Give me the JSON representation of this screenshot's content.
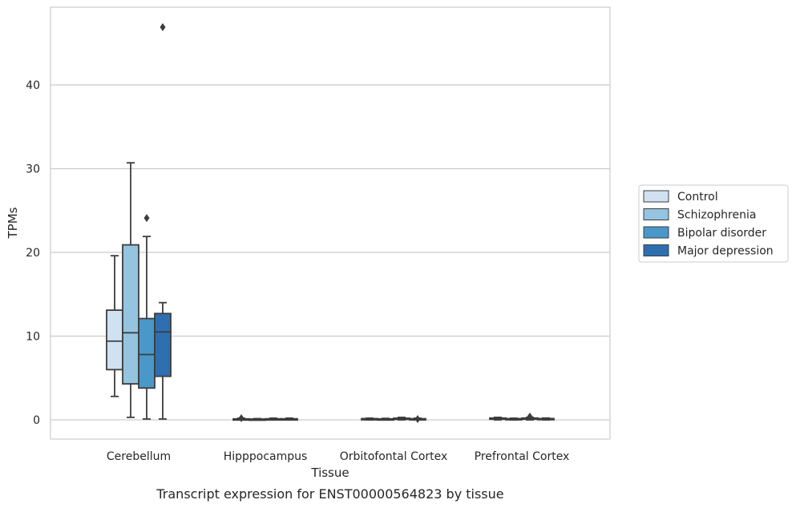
{
  "chart_data": {
    "type": "box",
    "title": "Transcript expression for ENST00000564823 by tissue",
    "xlabel": "Tissue",
    "ylabel": "TPMs",
    "ylim": [
      -2.3,
      49
    ],
    "yticks": [
      0,
      10,
      20,
      30,
      40
    ],
    "grid": "horizontal",
    "legend_position": "right",
    "categories": [
      "Cerebellum",
      "Hipppocampus",
      "Orbitofontal Cortex",
      "Prefrontal Cortex"
    ],
    "series": [
      {
        "name": "Control",
        "color": "#d0e1f2",
        "boxes": [
          {
            "whislo": 2.8,
            "q1": 6.0,
            "med": 9.4,
            "q3": 13.1,
            "whishi": 19.6,
            "fliers": []
          },
          {
            "whislo": 0.0,
            "q1": 0.03,
            "med": 0.07,
            "q3": 0.12,
            "whishi": 0.2,
            "fliers": [
              0.2
            ]
          },
          {
            "whislo": 0.0,
            "q1": 0.05,
            "med": 0.1,
            "q3": 0.15,
            "whishi": 0.2,
            "fliers": []
          },
          {
            "whislo": 0.0,
            "q1": 0.1,
            "med": 0.15,
            "q3": 0.22,
            "whishi": 0.3,
            "fliers": []
          }
        ]
      },
      {
        "name": "Schizophrenia",
        "color": "#94c4df",
        "boxes": [
          {
            "whislo": 0.3,
            "q1": 4.3,
            "med": 10.4,
            "q3": 20.9,
            "whishi": 30.7,
            "fliers": []
          },
          {
            "whislo": 0.0,
            "q1": 0.03,
            "med": 0.06,
            "q3": 0.1,
            "whishi": 0.15,
            "fliers": []
          },
          {
            "whislo": 0.0,
            "q1": 0.04,
            "med": 0.08,
            "q3": 0.12,
            "whishi": 0.18,
            "fliers": []
          },
          {
            "whislo": 0.0,
            "q1": 0.06,
            "med": 0.1,
            "q3": 0.15,
            "whishi": 0.2,
            "fliers": []
          }
        ]
      },
      {
        "name": "Bipolar disorder",
        "color": "#4a98c9",
        "boxes": [
          {
            "whislo": 0.1,
            "q1": 3.8,
            "med": 7.8,
            "q3": 12.1,
            "whishi": 21.9,
            "fliers": [
              24.1
            ]
          },
          {
            "whislo": 0.0,
            "q1": 0.04,
            "med": 0.08,
            "q3": 0.13,
            "whishi": 0.2,
            "fliers": []
          },
          {
            "whislo": 0.0,
            "q1": 0.06,
            "med": 0.12,
            "q3": 0.2,
            "whishi": 0.3,
            "fliers": []
          },
          {
            "whislo": 0.0,
            "q1": 0.08,
            "med": 0.14,
            "q3": 0.22,
            "whishi": 0.3,
            "fliers": [
              0.4
            ]
          }
        ]
      },
      {
        "name": "Major depression",
        "color": "#2e6fb0",
        "boxes": [
          {
            "whislo": 0.1,
            "q1": 5.2,
            "med": 10.5,
            "q3": 12.7,
            "whishi": 14.0,
            "fliers": [
              46.9
            ]
          },
          {
            "whislo": 0.0,
            "q1": 0.04,
            "med": 0.08,
            "q3": 0.13,
            "whishi": 0.2,
            "fliers": []
          },
          {
            "whislo": 0.0,
            "q1": 0.04,
            "med": 0.08,
            "q3": 0.14,
            "whishi": 0.2,
            "fliers": [
              0.1
            ]
          },
          {
            "whislo": 0.0,
            "q1": 0.06,
            "med": 0.11,
            "q3": 0.16,
            "whishi": 0.22,
            "fliers": []
          }
        ]
      }
    ]
  }
}
